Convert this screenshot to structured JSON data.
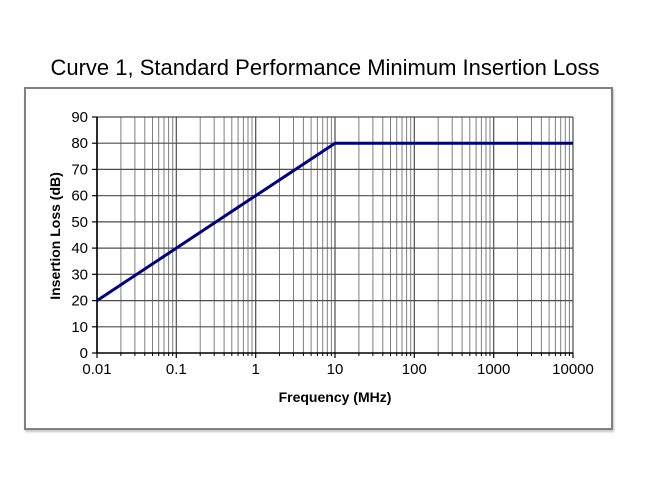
{
  "chart_data": {
    "type": "line",
    "title": "Curve 1, Standard Performance Minimum Insertion Loss",
    "xlabel": "Frequency (MHz)",
    "ylabel": "Insertion Loss (dB)",
    "x_scale": "log",
    "xlim": [
      0.01,
      10000
    ],
    "ylim": [
      0,
      90
    ],
    "x_ticks": [
      0.01,
      0.1,
      1,
      10,
      100,
      1000,
      10000
    ],
    "x_tick_labels": [
      "0.01",
      "0.1",
      "1",
      "10",
      "100",
      "1000",
      "10000"
    ],
    "y_ticks": [
      0,
      10,
      20,
      30,
      40,
      50,
      60,
      70,
      80,
      90
    ],
    "y_tick_labels": [
      "0",
      "10",
      "20",
      "30",
      "40",
      "50",
      "60",
      "70",
      "80",
      "90"
    ],
    "grid": {
      "horizontal_major": true,
      "vertical_major": true,
      "vertical_minor": true,
      "horizontal_minor": false
    },
    "legend_position": "none",
    "series": [
      {
        "name": "Curve 1",
        "color": "#000080",
        "stroke_width": 3,
        "points": [
          [
            0.01,
            20
          ],
          [
            10,
            80
          ],
          [
            10000,
            80
          ]
        ]
      }
    ]
  },
  "colors": {
    "background": "#ffffff",
    "chart_border": "#808080",
    "axis": "#000000",
    "grid_major": "#4d4d4d",
    "grid_minor": "#808080",
    "line": "#000080",
    "text": "#000000"
  }
}
